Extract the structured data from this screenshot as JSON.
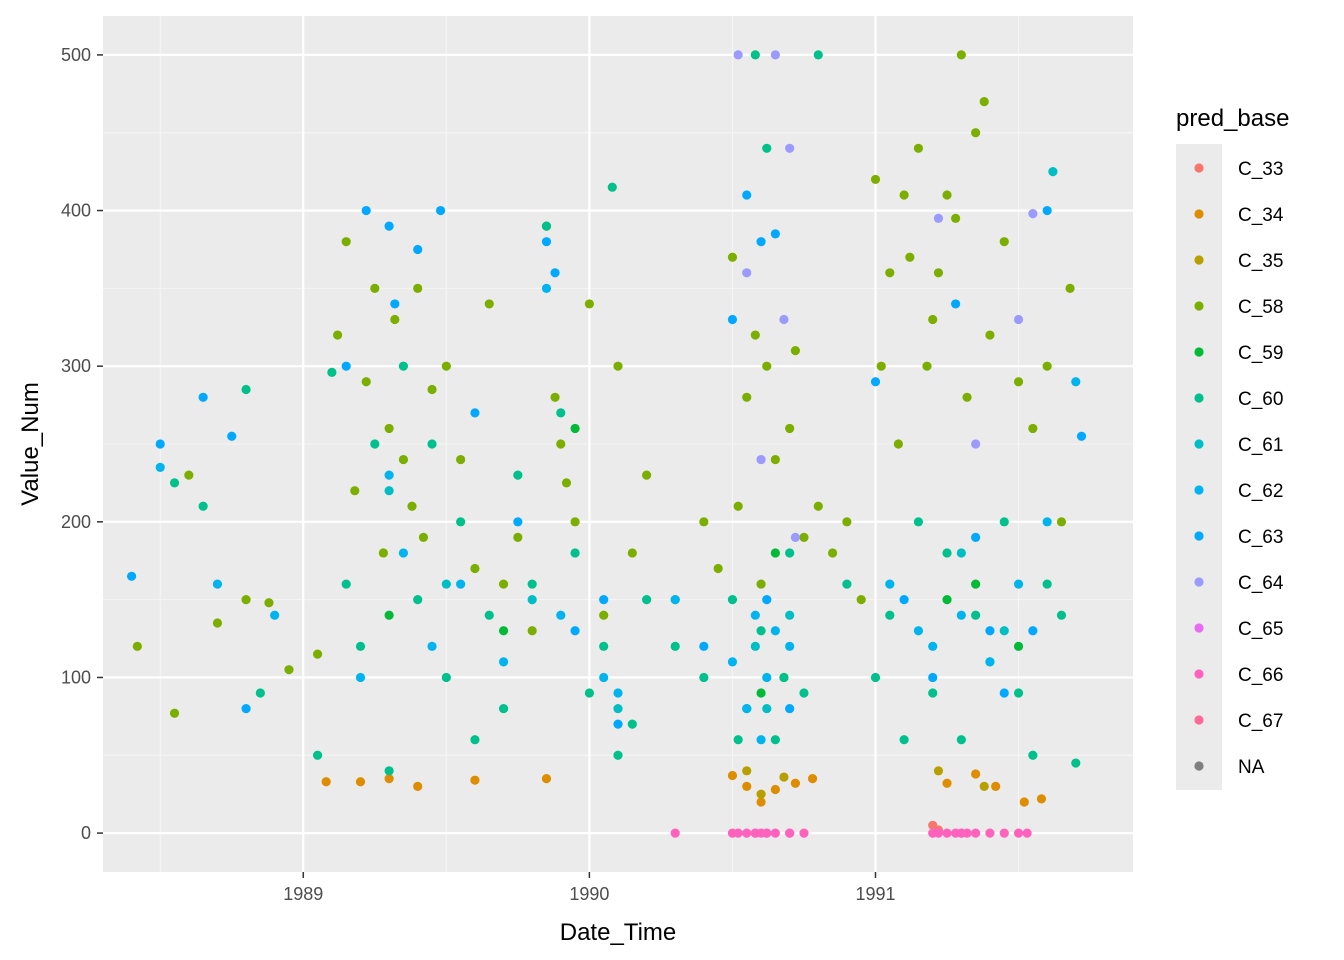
{
  "chart_data": {
    "type": "scatter",
    "title": "",
    "xlabel": "Date_Time",
    "ylabel": "Value_Num",
    "x_ticks": [
      1989,
      1990,
      1991
    ],
    "y_ticks": [
      0,
      100,
      200,
      300,
      400,
      500
    ],
    "xlim": [
      1988.3,
      1991.9
    ],
    "ylim": [
      -25,
      525
    ],
    "grid": true,
    "legend": {
      "title": "pred_base",
      "position": "right",
      "entries": [
        {
          "name": "C_33",
          "color": "#F8766D"
        },
        {
          "name": "C_34",
          "color": "#DE8C00"
        },
        {
          "name": "C_35",
          "color": "#B79F00"
        },
        {
          "name": "C_58",
          "color": "#7CAE00"
        },
        {
          "name": "C_59",
          "color": "#00BA38"
        },
        {
          "name": "C_60",
          "color": "#00C08B"
        },
        {
          "name": "C_61",
          "color": "#00BFC4"
        },
        {
          "name": "C_62",
          "color": "#00B4F0"
        },
        {
          "name": "C_63",
          "color": "#00A9FF"
        },
        {
          "name": "C_64",
          "color": "#9A9AFF"
        },
        {
          "name": "C_65",
          "color": "#E76BF3"
        },
        {
          "name": "C_66",
          "color": "#FF62BC"
        },
        {
          "name": "C_67",
          "color": "#FF6A98"
        },
        {
          "name": "NA",
          "color": "#7F7F7F"
        }
      ]
    },
    "series": [
      {
        "name": "C_34",
        "x": [
          1989.08,
          1989.2,
          1989.3,
          1989.4,
          1989.6,
          1989.85,
          1990.5,
          1990.55,
          1990.6,
          1990.65,
          1990.72,
          1990.78,
          1991.25,
          1991.35,
          1991.42,
          1991.52,
          1991.58
        ],
        "y": [
          33,
          33,
          35,
          30,
          34,
          35,
          37,
          30,
          20,
          28,
          32,
          35,
          32,
          38,
          30,
          20,
          22
        ]
      },
      {
        "name": "C_35",
        "x": [
          1990.55,
          1990.6,
          1990.68,
          1991.22,
          1991.38
        ],
        "y": [
          40,
          25,
          36,
          40,
          30
        ]
      },
      {
        "name": "C_33",
        "x": [
          1991.2,
          1991.22
        ],
        "y": [
          5,
          2
        ]
      },
      {
        "name": "C_58",
        "x": [
          1988.42,
          1988.55,
          1988.6,
          1988.7,
          1988.8,
          1988.88,
          1988.95,
          1989.05,
          1989.12,
          1989.15,
          1989.18,
          1989.22,
          1989.25,
          1989.28,
          1989.3,
          1989.32,
          1989.35,
          1989.38,
          1989.4,
          1989.42,
          1989.45,
          1989.5,
          1989.55,
          1989.6,
          1989.65,
          1989.7,
          1989.75,
          1989.8,
          1989.85,
          1989.88,
          1989.9,
          1989.92,
          1989.95,
          1990.0,
          1990.05,
          1990.1,
          1990.15,
          1990.2,
          1990.3,
          1990.4,
          1990.45,
          1990.5,
          1990.52,
          1990.55,
          1990.58,
          1990.6,
          1990.62,
          1990.65,
          1990.68,
          1990.7,
          1990.72,
          1990.75,
          1990.8,
          1990.85,
          1990.9,
          1990.95,
          1991.0,
          1991.02,
          1991.05,
          1991.08,
          1991.1,
          1991.12,
          1991.15,
          1991.18,
          1991.2,
          1991.22,
          1991.25,
          1991.28,
          1991.3,
          1991.32,
          1991.35,
          1991.38,
          1991.4,
          1991.45,
          1991.5,
          1991.55,
          1991.6,
          1991.65,
          1991.68
        ],
        "y": [
          120,
          77,
          230,
          135,
          150,
          148,
          105,
          115,
          320,
          380,
          220,
          290,
          350,
          180,
          260,
          330,
          240,
          210,
          350,
          190,
          285,
          300,
          240,
          170,
          340,
          160,
          190,
          130,
          390,
          280,
          250,
          225,
          200,
          340,
          140,
          300,
          180,
          230,
          150,
          200,
          170,
          370,
          210,
          280,
          320,
          160,
          300,
          240,
          100,
          260,
          310,
          190,
          210,
          180,
          200,
          150,
          420,
          300,
          360,
          250,
          410,
          370,
          440,
          300,
          330,
          360,
          410,
          395,
          500,
          280,
          450,
          470,
          320,
          380,
          290,
          260,
          300,
          200,
          350
        ]
      },
      {
        "name": "C_59",
        "x": [
          1989.3,
          1989.7,
          1989.95,
          1990.6,
          1990.65,
          1991.25,
          1991.35,
          1991.5
        ],
        "y": [
          140,
          130,
          260,
          90,
          180,
          150,
          160,
          120
        ]
      },
      {
        "name": "C_60",
        "x": [
          1988.55,
          1988.65,
          1988.8,
          1988.85,
          1989.05,
          1989.1,
          1989.15,
          1989.2,
          1989.25,
          1989.3,
          1989.35,
          1989.4,
          1989.45,
          1989.5,
          1989.55,
          1989.6,
          1989.65,
          1989.7,
          1989.75,
          1989.8,
          1989.85,
          1989.9,
          1989.95,
          1990.0,
          1990.05,
          1990.08,
          1990.1,
          1990.15,
          1990.2,
          1990.3,
          1990.4,
          1990.5,
          1990.52,
          1990.55,
          1990.58,
          1990.6,
          1990.62,
          1990.65,
          1990.68,
          1990.7,
          1990.75,
          1990.8,
          1990.9,
          1991.0,
          1991.05,
          1991.1,
          1991.15,
          1991.2,
          1991.25,
          1991.3,
          1991.35,
          1991.4,
          1991.45,
          1991.5,
          1991.55,
          1991.6,
          1991.65,
          1991.7
        ],
        "y": [
          225,
          210,
          285,
          90,
          50,
          296,
          160,
          120,
          250,
          40,
          300,
          150,
          250,
          100,
          200,
          60,
          140,
          80,
          230,
          160,
          390,
          270,
          180,
          90,
          120,
          415,
          50,
          70,
          150,
          120,
          100,
          150,
          60,
          80,
          500,
          130,
          440,
          60,
          100,
          180,
          90,
          500,
          160,
          100,
          140,
          60,
          200,
          90,
          180,
          60,
          140,
          110,
          200,
          90,
          50,
          160,
          140,
          45
        ]
      },
      {
        "name": "C_61",
        "x": [
          1989.3,
          1989.5,
          1989.8,
          1990.1,
          1990.58,
          1990.62,
          1990.7,
          1991.3,
          1991.45,
          1991.62
        ],
        "y": [
          220,
          160,
          150,
          80,
          120,
          80,
          140,
          180,
          130,
          425
        ]
      },
      {
        "name": "C_62",
        "x": [
          1988.5,
          1988.7,
          1988.9,
          1989.2,
          1989.3,
          1989.35,
          1989.45,
          1989.55,
          1989.7,
          1989.85,
          1989.9,
          1990.05,
          1990.1,
          1990.3,
          1990.5,
          1990.55,
          1990.58,
          1990.6,
          1990.62,
          1990.65,
          1990.7,
          1991.05,
          1991.15,
          1991.2,
          1991.3,
          1991.4,
          1991.5,
          1991.6,
          1991.7
        ],
        "y": [
          235,
          160,
          140,
          100,
          230,
          180,
          120,
          160,
          110,
          350,
          140,
          100,
          90,
          150,
          110,
          80,
          140,
          60,
          100,
          130,
          120,
          160,
          130,
          120,
          140,
          110,
          160,
          200,
          290
        ]
      },
      {
        "name": "C_63",
        "x": [
          1988.4,
          1988.5,
          1988.65,
          1988.75,
          1988.8,
          1989.15,
          1989.22,
          1989.3,
          1989.32,
          1989.4,
          1989.48,
          1989.6,
          1989.75,
          1989.85,
          1989.88,
          1989.95,
          1990.05,
          1990.1,
          1990.4,
          1990.5,
          1990.55,
          1990.6,
          1990.62,
          1990.65,
          1990.7,
          1991.0,
          1991.1,
          1991.2,
          1991.28,
          1991.35,
          1991.4,
          1991.45,
          1991.55,
          1991.6,
          1991.72
        ],
        "y": [
          165,
          250,
          280,
          255,
          80,
          300,
          400,
          390,
          340,
          375,
          400,
          270,
          200,
          380,
          360,
          130,
          150,
          70,
          120,
          330,
          410,
          380,
          150,
          385,
          80,
          290,
          150,
          100,
          340,
          190,
          130,
          90,
          130,
          400,
          255
        ]
      },
      {
        "name": "C_64",
        "x": [
          1990.52,
          1990.55,
          1990.6,
          1990.65,
          1990.68,
          1990.7,
          1990.72,
          1991.22,
          1991.35,
          1991.5,
          1991.55
        ],
        "y": [
          500,
          360,
          240,
          500,
          330,
          440,
          190,
          395,
          250,
          330,
          398
        ]
      },
      {
        "name": "C_65",
        "x": [
          1990.58,
          1990.62,
          1990.7,
          1991.3
        ],
        "y": [
          0,
          0,
          0,
          0
        ]
      },
      {
        "name": "C_66",
        "x": [
          1990.3,
          1990.5,
          1990.52,
          1990.55,
          1990.58,
          1990.6,
          1990.62,
          1990.65,
          1990.7,
          1990.75,
          1991.2,
          1991.22,
          1991.25,
          1991.28,
          1991.3,
          1991.32,
          1991.35,
          1991.4,
          1991.45,
          1991.5,
          1991.53
        ],
        "y": [
          0,
          0,
          0,
          0,
          0,
          0,
          0,
          0,
          0,
          0,
          0,
          0,
          0,
          0,
          0,
          0,
          0,
          0,
          0,
          0,
          0
        ]
      }
    ]
  }
}
